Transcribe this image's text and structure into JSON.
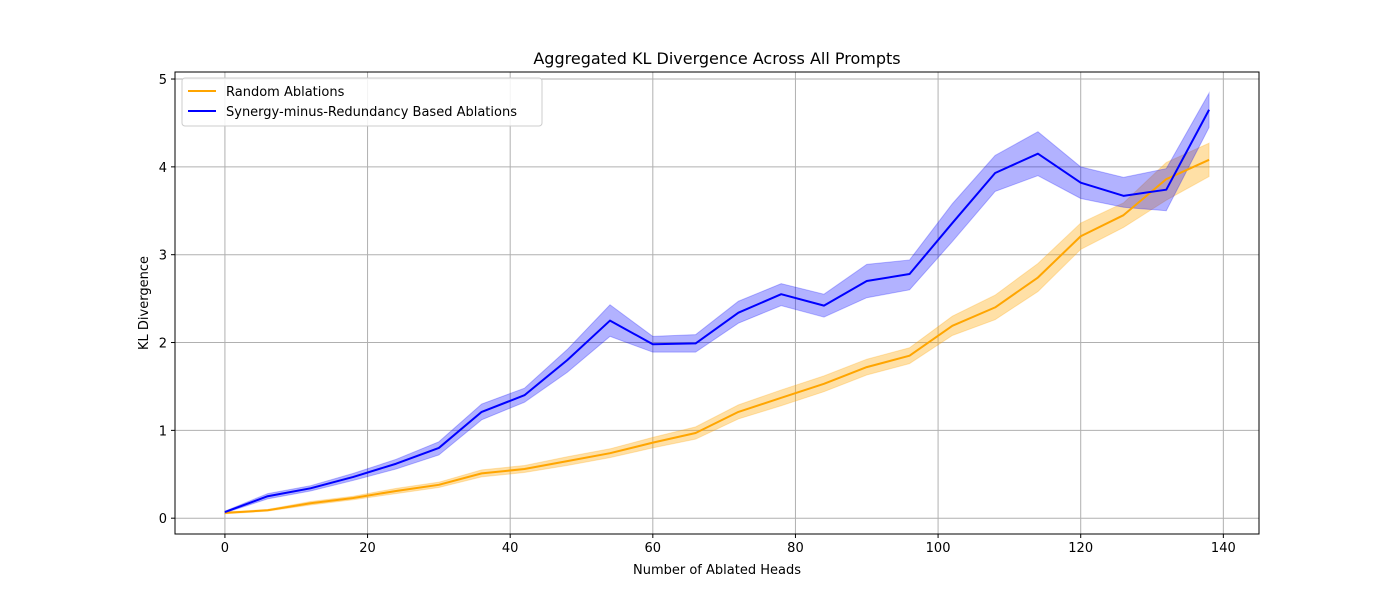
{
  "chart_data": {
    "type": "line",
    "title": "Aggregated KL Divergence Across All Prompts",
    "xlabel": "Number of Ablated Heads",
    "ylabel": "KL Divergence",
    "xlim": [
      -7,
      145
    ],
    "ylim": [
      -0.18,
      5.08
    ],
    "xticks": [
      0,
      20,
      40,
      60,
      80,
      100,
      120,
      140
    ],
    "yticks": [
      0,
      1,
      2,
      3,
      4,
      5
    ],
    "grid": true,
    "legend": "top-left",
    "x": [
      0,
      6,
      12,
      18,
      24,
      30,
      36,
      42,
      48,
      54,
      60,
      66,
      72,
      78,
      84,
      90,
      96,
      102,
      108,
      114,
      120,
      126,
      132,
      138
    ],
    "series": [
      {
        "name": "Random Ablations",
        "color": "#ffa500",
        "values": [
          0.06,
          0.09,
          0.17,
          0.23,
          0.31,
          0.38,
          0.51,
          0.56,
          0.65,
          0.74,
          0.86,
          0.97,
          1.21,
          1.37,
          1.53,
          1.72,
          1.85,
          2.19,
          2.4,
          2.74,
          3.21,
          3.45,
          3.86,
          4.08
        ],
        "lower": [
          0.05,
          0.08,
          0.15,
          0.21,
          0.28,
          0.35,
          0.47,
          0.52,
          0.6,
          0.69,
          0.8,
          0.9,
          1.13,
          1.28,
          1.44,
          1.63,
          1.76,
          2.08,
          2.26,
          2.58,
          3.06,
          3.31,
          3.62,
          3.89
        ],
        "upper": [
          0.07,
          0.1,
          0.19,
          0.25,
          0.34,
          0.41,
          0.55,
          0.6,
          0.7,
          0.79,
          0.92,
          1.04,
          1.29,
          1.46,
          1.62,
          1.81,
          1.94,
          2.3,
          2.54,
          2.9,
          3.36,
          3.59,
          4.05,
          4.27
        ],
        "band_opacity": 0.35
      },
      {
        "name": "Synergy-minus-Redundancy Based Ablations",
        "color": "#0000ff",
        "values": [
          0.07,
          0.25,
          0.34,
          0.47,
          0.62,
          0.8,
          1.21,
          1.4,
          1.8,
          2.25,
          1.98,
          1.99,
          2.34,
          2.55,
          2.42,
          2.7,
          2.78,
          3.36,
          3.93,
          4.15,
          3.82,
          3.67,
          3.74,
          4.65
        ],
        "lower": [
          0.06,
          0.22,
          0.31,
          0.43,
          0.56,
          0.72,
          1.12,
          1.32,
          1.66,
          2.07,
          1.89,
          1.89,
          2.22,
          2.42,
          2.29,
          2.51,
          2.6,
          3.15,
          3.72,
          3.9,
          3.64,
          3.54,
          3.5,
          4.45
        ],
        "upper": [
          0.08,
          0.28,
          0.37,
          0.51,
          0.67,
          0.87,
          1.3,
          1.48,
          1.92,
          2.43,
          2.07,
          2.09,
          2.47,
          2.67,
          2.55,
          2.89,
          2.94,
          3.58,
          4.13,
          4.4,
          4.0,
          3.88,
          3.98,
          4.84
        ],
        "band_opacity": 0.3
      }
    ]
  }
}
